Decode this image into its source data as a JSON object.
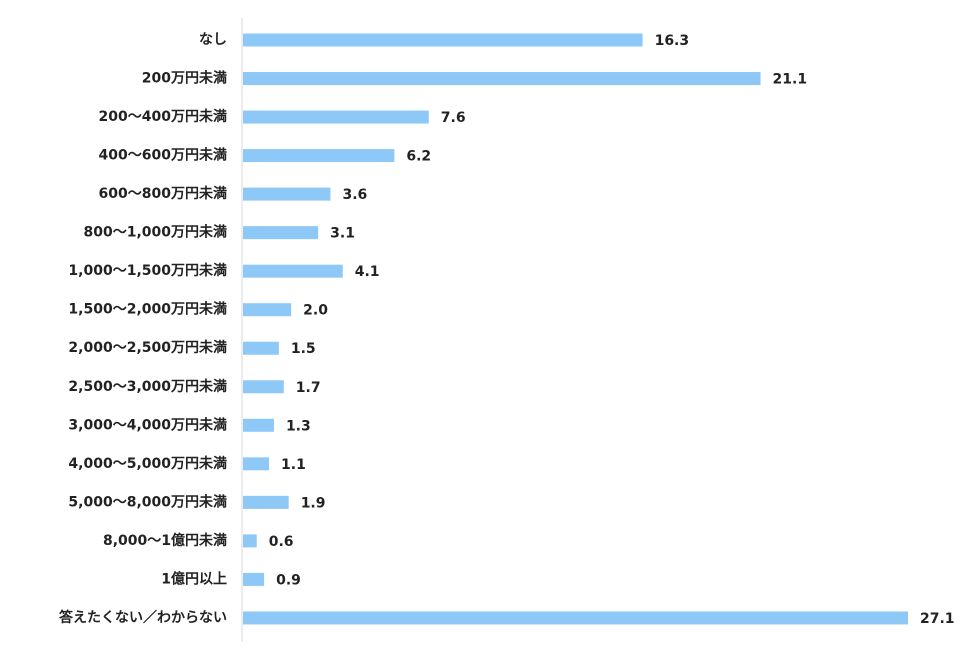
{
  "chart_data": {
    "type": "bar",
    "orientation": "horizontal",
    "color": "#8ec8f6",
    "categories": [
      "なし",
      "200万円未満",
      "200〜400万円未満",
      "400〜600万円未満",
      "600〜800万円未満",
      "800〜1,000万円未満",
      "1,000〜1,500万円未満",
      "1,500〜2,000万円未満",
      "2,000〜2,500万円未満",
      "2,500〜3,000万円未満",
      "3,000〜4,000万円未満",
      "4,000〜5,000万円未満",
      "5,000〜8,000万円未満",
      "8,000〜1億円未満",
      "1億円以上",
      "答えたくない／わからない"
    ],
    "values": [
      16.3,
      21.1,
      7.6,
      6.2,
      3.6,
      3.1,
      4.1,
      2.0,
      1.5,
      1.7,
      1.3,
      1.1,
      1.9,
      0.6,
      0.9,
      27.1
    ],
    "value_labels": [
      "16.3",
      "21.1",
      "7.6",
      "6.2",
      "3.6",
      "3.1",
      "4.1",
      "2.0",
      "1.5",
      "1.7",
      "1.3",
      "1.1",
      "1.9",
      "0.6",
      "0.9",
      "27.1"
    ]
  }
}
